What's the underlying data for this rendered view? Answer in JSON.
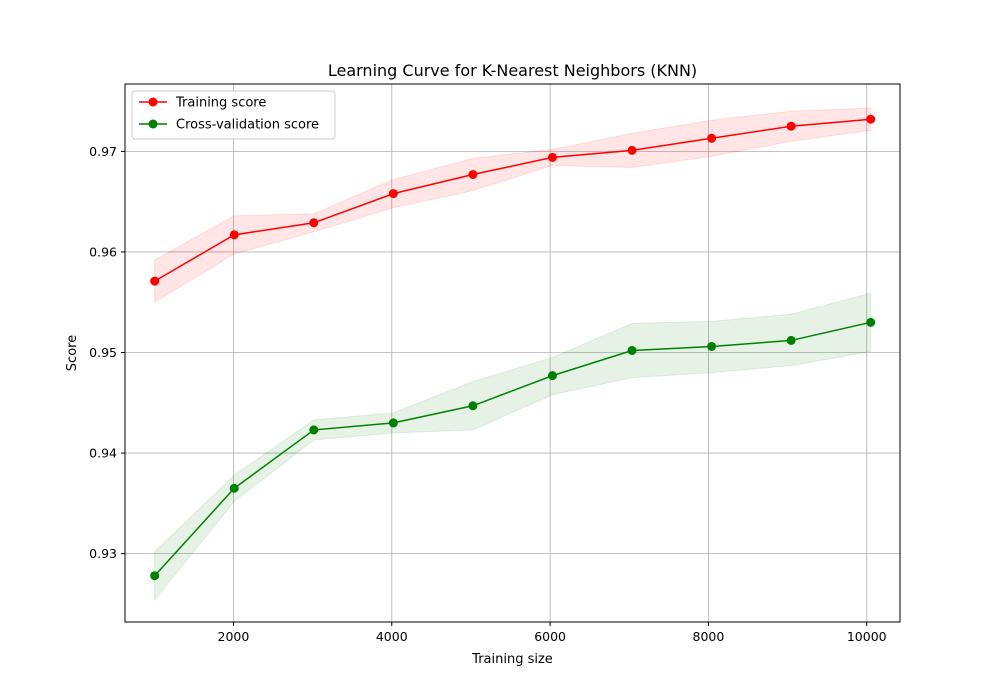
{
  "chart_data": {
    "type": "line",
    "title": "Learning Curve for K-Nearest Neighbors (KNN)",
    "xlabel": "Training size",
    "ylabel": "Score",
    "xlim": [
      630,
      10420
    ],
    "ylim": [
      0.9232,
      0.9767
    ],
    "x_ticks": [
      2000,
      4000,
      6000,
      8000,
      10000
    ],
    "y_ticks": [
      0.93,
      0.94,
      0.95,
      0.96,
      0.97
    ],
    "x_tick_labels": [
      "2000",
      "4000",
      "6000",
      "8000",
      "10000"
    ],
    "y_tick_labels": [
      "0.93",
      "0.94",
      "0.95",
      "0.96",
      "0.97"
    ],
    "grid": true,
    "legend_position": "top-left",
    "x": [
      1005,
      2010,
      3015,
      4020,
      5025,
      6030,
      7035,
      8040,
      9045,
      10050
    ],
    "series": [
      {
        "name": "Training score",
        "color": "#ff0000",
        "band_color": "#ff0000",
        "values": [
          0.9571,
          0.9617,
          0.9629,
          0.9658,
          0.9677,
          0.9694,
          0.9701,
          0.9713,
          0.9725,
          0.9732
        ],
        "upper": [
          0.9592,
          0.9636,
          0.9638,
          0.9672,
          0.9693,
          0.9702,
          0.9718,
          0.9731,
          0.974,
          0.9743
        ],
        "lower": [
          0.955,
          0.9598,
          0.962,
          0.9644,
          0.9661,
          0.9686,
          0.9684,
          0.9695,
          0.971,
          0.9721
        ]
      },
      {
        "name": "Cross-validation score",
        "color": "#008000",
        "band_color": "#008000",
        "values": [
          0.9278,
          0.9365,
          0.9423,
          0.943,
          0.9447,
          0.9477,
          0.9502,
          0.9506,
          0.9512,
          0.953
        ],
        "upper": [
          0.9302,
          0.9378,
          0.9433,
          0.944,
          0.9471,
          0.9495,
          0.9529,
          0.9531,
          0.9538,
          0.9559
        ],
        "lower": [
          0.9254,
          0.9352,
          0.9413,
          0.942,
          0.9423,
          0.9458,
          0.9475,
          0.948,
          0.9487,
          0.9501
        ]
      }
    ]
  }
}
